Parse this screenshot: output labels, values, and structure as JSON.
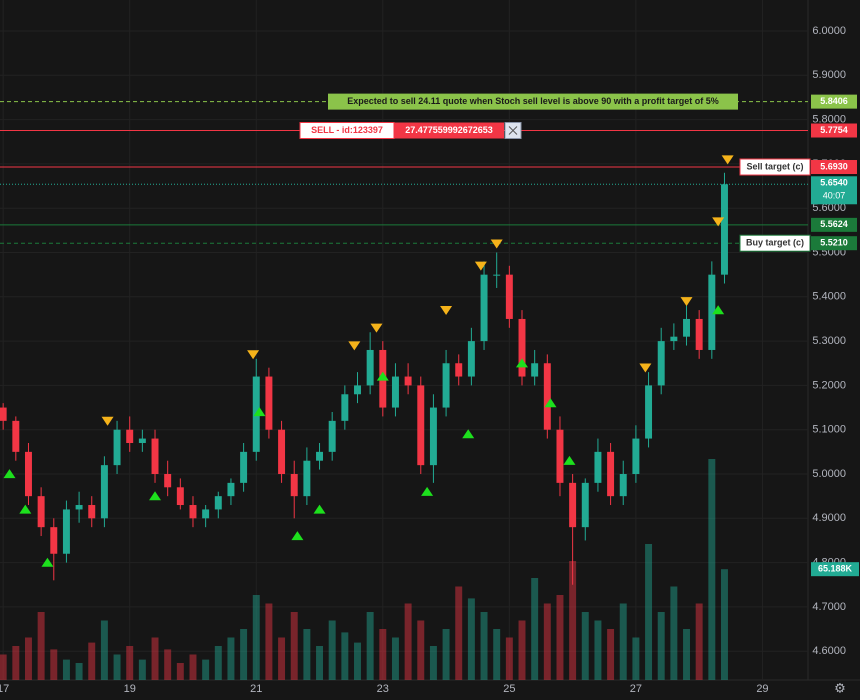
{
  "chart_data": {
    "type": "candlestick",
    "x": [
      17.0,
      17.2,
      17.4,
      17.6,
      17.8,
      18.0,
      18.2,
      18.4,
      18.6,
      18.8,
      19.0,
      19.2,
      19.4,
      19.6,
      19.8,
      20.0,
      20.2,
      20.4,
      20.6,
      20.8,
      21.0,
      21.2,
      21.4,
      21.6,
      21.8,
      22.0,
      22.2,
      22.4,
      22.6,
      22.8,
      23.0,
      23.2,
      23.4,
      23.6,
      23.8,
      24.0,
      24.2,
      24.4,
      24.6,
      24.8,
      25.0,
      25.2,
      25.4,
      25.6,
      25.8,
      26.0,
      26.2,
      26.4,
      26.6,
      26.8,
      27.0,
      27.2,
      27.4,
      27.6,
      27.8,
      28.0,
      28.2,
      28.4
    ],
    "open": [
      5.15,
      5.12,
      5.05,
      4.95,
      4.88,
      4.82,
      4.92,
      4.93,
      4.9,
      5.02,
      5.1,
      5.07,
      5.08,
      5.0,
      4.97,
      4.93,
      4.9,
      4.92,
      4.95,
      4.98,
      5.05,
      5.22,
      5.1,
      5.0,
      4.95,
      5.03,
      5.05,
      5.12,
      5.18,
      5.2,
      5.28,
      5.15,
      5.22,
      5.2,
      5.02,
      5.15,
      5.25,
      5.22,
      5.3,
      5.45,
      5.45,
      5.35,
      5.22,
      5.25,
      5.1,
      4.98,
      4.88,
      4.98,
      5.05,
      4.95,
      5.0,
      5.08,
      5.2,
      5.3,
      5.31,
      5.35,
      5.28,
      5.45
    ],
    "high": [
      5.16,
      5.13,
      5.07,
      4.97,
      4.9,
      4.94,
      4.96,
      4.95,
      5.04,
      5.12,
      5.13,
      5.1,
      5.1,
      5.03,
      4.99,
      4.95,
      4.93,
      4.96,
      4.99,
      5.07,
      5.26,
      5.24,
      5.12,
      5.03,
      5.06,
      5.07,
      5.14,
      5.2,
      5.23,
      5.32,
      5.3,
      5.25,
      5.25,
      5.22,
      5.18,
      5.28,
      5.27,
      5.33,
      5.48,
      5.5,
      5.47,
      5.37,
      5.28,
      5.27,
      5.13,
      5.0,
      4.99,
      5.08,
      5.07,
      5.03,
      5.11,
      5.23,
      5.33,
      5.34,
      5.38,
      5.37,
      5.48,
      5.68
    ],
    "low": [
      5.1,
      5.03,
      4.93,
      4.86,
      4.76,
      4.8,
      4.89,
      4.88,
      4.88,
      5.0,
      5.05,
      5.05,
      4.98,
      4.95,
      4.92,
      4.88,
      4.88,
      4.9,
      4.93,
      4.96,
      5.03,
      5.08,
      4.98,
      4.9,
      4.93,
      5.01,
      5.03,
      5.1,
      5.16,
      5.18,
      5.13,
      5.13,
      5.18,
      5.0,
      4.98,
      5.13,
      5.2,
      5.2,
      5.28,
      5.42,
      5.33,
      5.2,
      5.2,
      5.08,
      4.95,
      4.75,
      4.85,
      4.96,
      4.93,
      4.93,
      4.98,
      5.06,
      5.18,
      5.28,
      5.29,
      5.26,
      5.26,
      5.43
    ],
    "close": [
      5.12,
      5.05,
      4.95,
      4.88,
      4.82,
      4.92,
      4.93,
      4.9,
      5.02,
      5.1,
      5.07,
      5.08,
      5.0,
      4.97,
      4.93,
      4.9,
      4.92,
      4.95,
      4.98,
      5.05,
      5.22,
      5.1,
      5.0,
      4.95,
      5.03,
      5.05,
      5.12,
      5.18,
      5.2,
      5.28,
      5.15,
      5.22,
      5.2,
      5.02,
      5.15,
      5.25,
      5.22,
      5.3,
      5.45,
      5.45,
      5.35,
      5.22,
      5.25,
      5.1,
      4.98,
      4.88,
      4.98,
      5.05,
      4.95,
      5.0,
      5.08,
      5.2,
      5.3,
      5.31,
      5.35,
      5.28,
      5.45,
      5.654
    ],
    "volume": [
      15,
      20,
      25,
      40,
      18,
      12,
      10,
      22,
      35,
      15,
      20,
      12,
      25,
      18,
      10,
      15,
      12,
      20,
      25,
      30,
      50,
      45,
      25,
      40,
      30,
      20,
      35,
      28,
      22,
      40,
      30,
      25,
      45,
      35,
      20,
      30,
      55,
      48,
      40,
      30,
      25,
      35,
      60,
      45,
      50,
      70,
      40,
      35,
      30,
      45,
      25,
      80,
      40,
      55,
      30,
      45,
      130,
      65.188
    ],
    "volume_label": "65.188K",
    "volume_lim": [
      0,
      140
    ],
    "up_color": "#22ab94",
    "down_color": "#f23645",
    "xlim": [
      16.95,
      29.72
    ],
    "xticks": [
      {
        "value": 17,
        "label": "17"
      },
      19,
      21,
      23,
      25,
      27,
      29
    ],
    "ylim": [
      4.535,
      6.07
    ],
    "yticks": [
      {
        "value": 4.6,
        "label": "4.6000"
      },
      {
        "value": 4.7,
        "label": "4.7000"
      },
      {
        "value": 4.8,
        "label": "4.8000"
      },
      {
        "value": 4.9,
        "label": "4.9000"
      },
      {
        "value": 5.0,
        "label": "5.0000"
      },
      {
        "value": 5.1,
        "label": "5.1000"
      },
      {
        "value": 5.2,
        "label": "5.2000"
      },
      {
        "value": 5.3,
        "label": "5.3000"
      },
      {
        "value": 5.4,
        "label": "5.4000"
      },
      {
        "value": 5.5,
        "label": "5.5000"
      },
      {
        "value": 5.6,
        "label": "5.6000"
      },
      {
        "value": 5.7,
        "label": "5.7000"
      },
      {
        "value": 5.8,
        "label": "5.8000"
      },
      {
        "value": 5.9,
        "label": "5.9000"
      },
      {
        "value": 6.0,
        "label": "6.0000"
      }
    ],
    "grid": true,
    "current_price_label": "5.6540",
    "countdown": "40:07",
    "levels": [
      {
        "value": 5.8406,
        "label": "5.8406",
        "color": "#8bc34a",
        "dash": true,
        "note": "Expected to sell 24.11 quote when Stoch sell level is above 90 with a profit target of 5%"
      },
      {
        "value": 5.7754,
        "label": "5.7754",
        "color": "#f23645",
        "dash": false,
        "order": "SELL - id:123397",
        "amount": "27.477559992672653"
      },
      {
        "value": 5.693,
        "label": "5.6930",
        "color": "#f23645",
        "dash": false,
        "tag": "Sell target (c)"
      },
      {
        "value": 5.5624,
        "label": "5.5624",
        "color": "#1b7a3a",
        "dash": false
      },
      {
        "value": 5.521,
        "label": "5.5210",
        "color": "#1b7a3a",
        "dash": true,
        "tag": "Buy target (c)"
      }
    ],
    "sell_signals": {
      "color": "#f5b31a",
      "x": [
        18.65,
        20.95,
        22.55,
        22.9,
        24.0,
        24.55,
        24.8,
        27.15,
        27.8,
        28.3,
        28.45
      ],
      "y": [
        5.1,
        5.25,
        5.27,
        5.31,
        5.35,
        5.45,
        5.5,
        5.22,
        5.37,
        5.55,
        5.69
      ]
    },
    "buy_signals": {
      "color": "#1de01d",
      "x": [
        17.1,
        17.35,
        17.7,
        19.4,
        21.05,
        21.65,
        22.0,
        23.0,
        23.7,
        24.35,
        25.2,
        25.65,
        25.95,
        28.3
      ],
      "y": [
        5.02,
        4.94,
        4.82,
        4.97,
        5.16,
        4.88,
        4.94,
        5.24,
        4.98,
        5.11,
        5.27,
        5.18,
        5.05,
        5.39
      ]
    }
  }
}
